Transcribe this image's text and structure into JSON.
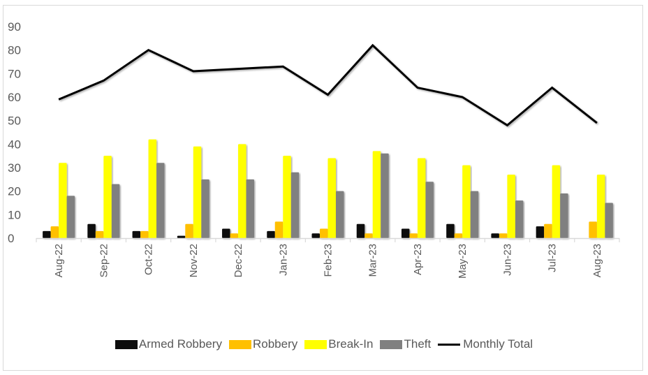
{
  "chart_data": {
    "type": "bar+line",
    "title": "",
    "xlabel": "",
    "ylabel": "",
    "ylim": [
      0,
      90
    ],
    "yticks": [
      0,
      10,
      20,
      30,
      40,
      50,
      60,
      70,
      80,
      90
    ],
    "grid": false,
    "legend_position": "bottom",
    "categories": [
      "Aug-22",
      "Sep-22",
      "Oct-22",
      "Nov-22",
      "Dec-22",
      "Jan-23",
      "Feb-23",
      "Mar-23",
      "Apr-23",
      "May-23",
      "Jun-23",
      "Jul-23",
      "Aug-23"
    ],
    "series": [
      {
        "name": "Armed Robbery",
        "type": "bar",
        "color": "#0d0d0d",
        "values": [
          3,
          6,
          3,
          1,
          4,
          3,
          2,
          6,
          4,
          6,
          2,
          5,
          0
        ]
      },
      {
        "name": "Robbery",
        "type": "bar",
        "color": "#ffc000",
        "values": [
          5,
          3,
          3,
          6,
          2,
          7,
          4,
          2,
          2,
          2,
          2,
          6,
          7
        ]
      },
      {
        "name": "Break-In",
        "type": "bar",
        "color": "#ffff00",
        "values": [
          32,
          35,
          42,
          39,
          40,
          35,
          34,
          37,
          34,
          31,
          27,
          31,
          27
        ]
      },
      {
        "name": "Theft",
        "type": "bar",
        "color": "#808080",
        "values": [
          18,
          23,
          32,
          25,
          25,
          28,
          20,
          36,
          24,
          20,
          16,
          19,
          15
        ]
      },
      {
        "name": "Monthly Total",
        "type": "line",
        "color": "#000000",
        "values": [
          59,
          67,
          80,
          71,
          72,
          73,
          61,
          82,
          64,
          60,
          48,
          64,
          49
        ]
      }
    ]
  },
  "legend": {
    "items": [
      {
        "label": "Armed Robbery",
        "kind": "box",
        "color": "#0d0d0d"
      },
      {
        "label": "Robbery",
        "kind": "box",
        "color": "#ffc000"
      },
      {
        "label": "Break-In",
        "kind": "box",
        "color": "#ffff00"
      },
      {
        "label": "Theft",
        "kind": "box",
        "color": "#808080"
      },
      {
        "label": "Monthly Total",
        "kind": "line",
        "color": "#000000"
      }
    ]
  }
}
